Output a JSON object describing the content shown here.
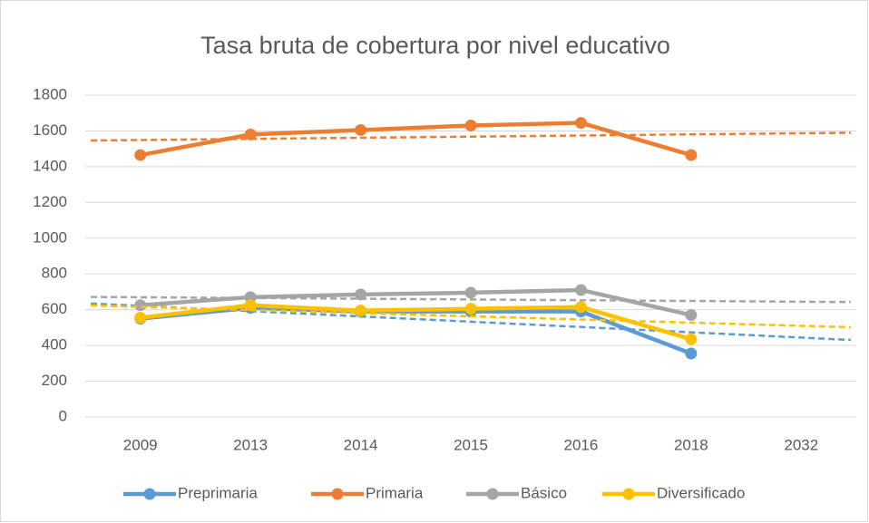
{
  "chart_data": {
    "type": "line",
    "title": "Tasa bruta de cobertura por nivel educativo",
    "categories": [
      "2009",
      "2013",
      "2014",
      "2015",
      "2016",
      "2018",
      "2032"
    ],
    "series": [
      {
        "name": "Preprimaria",
        "color": "#5b9bd5",
        "values": [
          550,
          610,
          590,
          590,
          590,
          355,
          null
        ]
      },
      {
        "name": "Primaria",
        "color": "#ed7d31",
        "values": [
          1465,
          1580,
          1605,
          1630,
          1645,
          1465,
          null
        ]
      },
      {
        "name": "Básico",
        "color": "#a5a5a5",
        "values": [
          625,
          670,
          685,
          695,
          710,
          570,
          null
        ]
      },
      {
        "name": "Diversificado",
        "color": "#ffc000",
        "values": [
          555,
          625,
          595,
          605,
          615,
          435,
          null
        ]
      }
    ],
    "ylim": [
      0,
      1800
    ],
    "yticks": [
      0,
      200,
      400,
      600,
      800,
      1000,
      1200,
      1400,
      1600,
      1800
    ],
    "grid": true,
    "trendline": "linear",
    "legend": "bottom"
  }
}
